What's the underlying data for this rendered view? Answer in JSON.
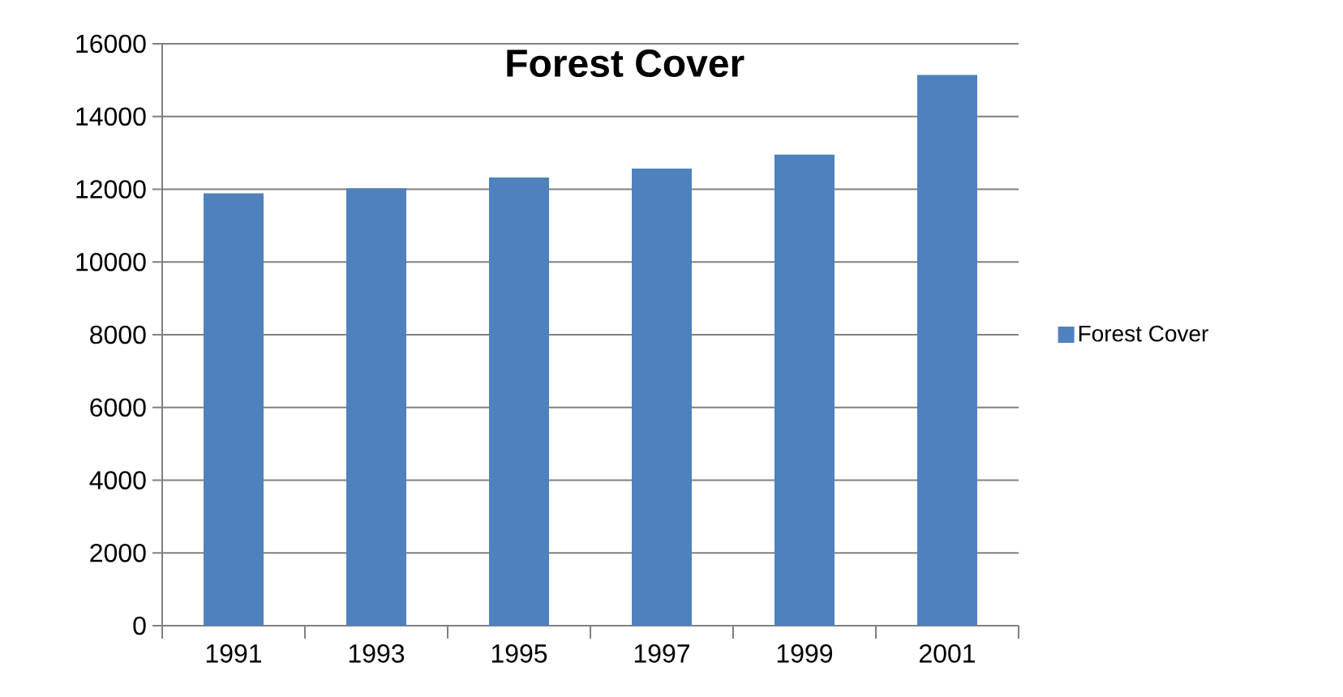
{
  "chart_data": {
    "type": "bar",
    "title": "Forest Cover",
    "categories": [
      "1991",
      "1993",
      "1995",
      "1997",
      "1999",
      "2001"
    ],
    "series": [
      {
        "name": "Forest Cover",
        "color": "#4f81bd",
        "values": [
          11890,
          12030,
          12320,
          12570,
          12950,
          15140
        ]
      }
    ],
    "ylim": [
      0,
      16000
    ],
    "yticks": [
      0,
      2000,
      4000,
      6000,
      8000,
      10000,
      12000,
      14000,
      16000
    ],
    "grid": "y",
    "legend": "right"
  }
}
